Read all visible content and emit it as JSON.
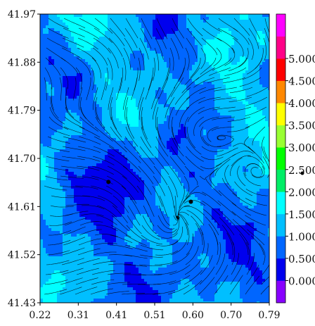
{
  "chart_data": {
    "type": "heatmap",
    "subtype": "filled-contour-with-streamlines",
    "title": "",
    "xlabel": "",
    "ylabel": "",
    "xlim": [
      0.22,
      0.79
    ],
    "ylim": [
      41.43,
      41.97
    ],
    "x_ticks": [
      "0.22",
      "0.31",
      "0.41",
      "0.51",
      "0.60",
      "0.70",
      "0.79"
    ],
    "y_ticks": [
      "41.43",
      "41.52",
      "41.61",
      "41.70",
      "41.79",
      "41.88",
      "41.97"
    ],
    "colorbar": {
      "levels": [
        -0.5,
        0.0,
        0.5,
        1.0,
        1.5,
        2.0,
        2.5,
        3.0,
        3.5,
        4.0,
        4.5,
        5.0,
        5.5
      ],
      "labels": [
        "0.000",
        "0.500",
        "1.000",
        "1.500",
        "2.000",
        "2.500",
        "3.000",
        "3.500",
        "4.000",
        "4.500",
        "5.000"
      ],
      "colors": [
        "#8800ff",
        "#0000ee",
        "#0066ff",
        "#00bfff",
        "#00ffff",
        "#00ee66",
        "#00ff00",
        "#99ff33",
        "#ffff00",
        "#ff8800",
        "#ff0000",
        "#ff0088",
        "#ff00ff"
      ]
    },
    "points": [
      {
        "x": 0.39,
        "y": 41.656
      },
      {
        "x": 0.595,
        "y": 41.619
      }
    ],
    "grid": false,
    "legend": "colorbar-right"
  }
}
